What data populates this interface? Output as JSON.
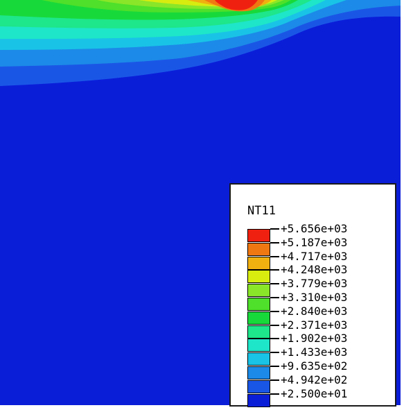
{
  "field_name": "NT11",
  "colors": {
    "background_field": "#0a1ed8",
    "bands": [
      "#0a1ed8",
      "#1a56e6",
      "#1c8ae8",
      "#19c3e6",
      "#1ee6c8",
      "#1ee68a",
      "#18d93a",
      "#4ee02a",
      "#8ae628",
      "#d8ec10",
      "#f0b010",
      "#f07812",
      "#f02010"
    ]
  },
  "legend": {
    "title": "NT11",
    "levels": [
      "+5.656e+03",
      "+5.187e+03",
      "+4.717e+03",
      "+4.248e+03",
      "+3.779e+03",
      "+3.310e+03",
      "+2.840e+03",
      "+2.371e+03",
      "+1.902e+03",
      "+1.433e+03",
      "+9.635e+02",
      "+4.942e+02",
      "+2.500e+01"
    ],
    "swatches": [
      "#f02010",
      "#f07812",
      "#f0b010",
      "#d8ec10",
      "#8ae628",
      "#4ee02a",
      "#18d93a",
      "#1ee68a",
      "#1ee6c8",
      "#19c3e6",
      "#1c8ae8",
      "#1a56e6",
      "#0a1ed8"
    ]
  }
}
